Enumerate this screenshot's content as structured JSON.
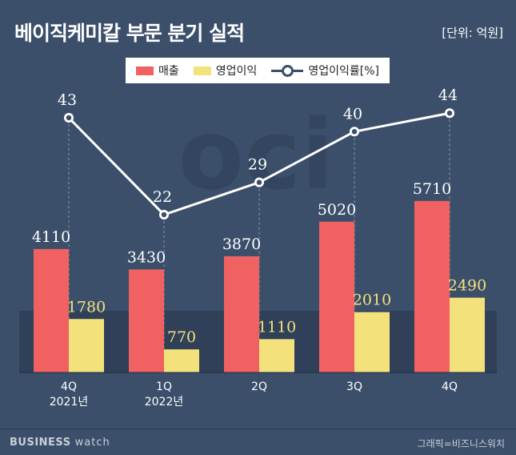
{
  "title": "베이직케미칼 부문 분기 실적",
  "unit": "[단위: 억원]",
  "colors": {
    "revenue": "#f06262",
    "op_profit": "#f3e27c",
    "line": "#ffffff",
    "background": "#3b4f6b"
  },
  "footer": {
    "brand_bold": "BUSINESS",
    "brand_light": "watch",
    "credit": "그래픽=비즈니스워치"
  },
  "chart_data": {
    "type": "bar",
    "categories": [
      "4Q 2021년",
      "1Q 2022년",
      "2Q",
      "3Q",
      "4Q"
    ],
    "category_lines": [
      [
        "4Q",
        "2021년"
      ],
      [
        "1Q",
        "2022년"
      ],
      [
        "2Q"
      ],
      [
        "3Q"
      ],
      [
        "4Q"
      ]
    ],
    "series": [
      {
        "name": "매출",
        "type": "bar",
        "values": [
          4110,
          3430,
          3870,
          5020,
          5710
        ]
      },
      {
        "name": "영업이익",
        "type": "bar",
        "values": [
          1780,
          770,
          1110,
          2010,
          2490
        ]
      },
      {
        "name": "영업이익률[%]",
        "type": "line",
        "values": [
          43,
          22,
          29,
          40,
          44
        ]
      }
    ],
    "legend": "top-center",
    "grid": false
  }
}
